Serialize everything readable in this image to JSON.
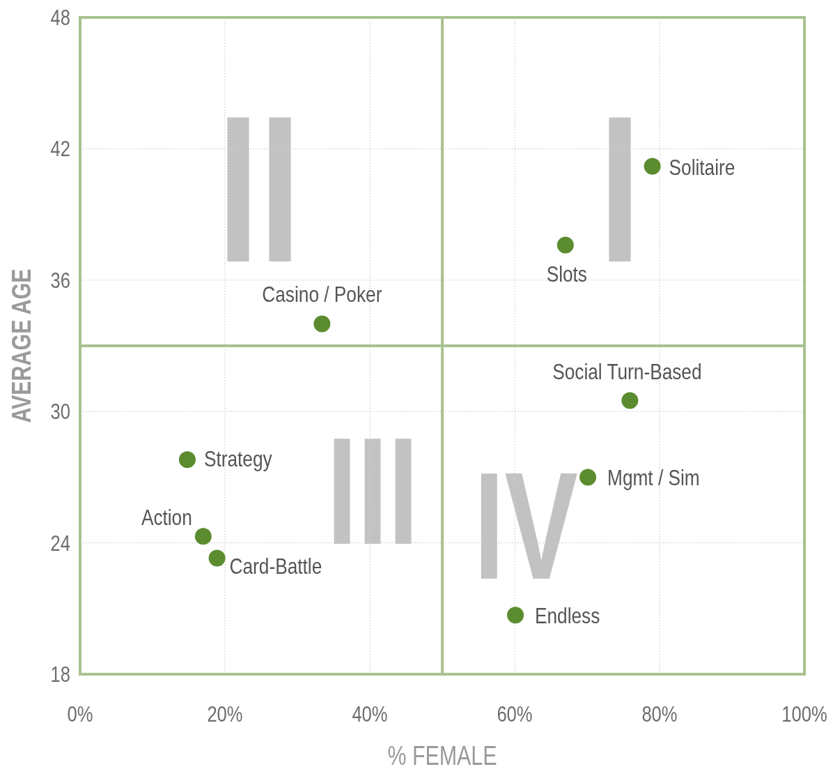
{
  "chart_data": {
    "type": "scatter",
    "xlabel": "% FEMALE",
    "ylabel": "AVERAGE AGE",
    "xlim": [
      0,
      100
    ],
    "ylim": [
      18,
      48
    ],
    "xticks": [
      {
        "value": 0,
        "label": "0%"
      },
      {
        "value": 20,
        "label": "20%"
      },
      {
        "value": 40,
        "label": "40%"
      },
      {
        "value": 60,
        "label": "60%"
      },
      {
        "value": 80,
        "label": "80%"
      },
      {
        "value": 100,
        "label": "100%"
      }
    ],
    "yticks": [
      18,
      24,
      30,
      36,
      42,
      48
    ],
    "grid": true,
    "marker": "circle",
    "series": [
      {
        "color": "#5b8c2f",
        "x": [
          79,
          67,
          33.4,
          75.9,
          70.1,
          60.1,
          14.8,
          17,
          18.9
        ],
        "values": [
          41.2,
          37.6,
          34,
          30.5,
          27,
          20.7,
          27.8,
          24.3,
          23.3
        ]
      }
    ],
    "ref_lines": [
      {
        "axis": "x",
        "value": 50,
        "color": "#a9c291"
      },
      {
        "axis": "y",
        "value": 33,
        "color": "#a9c291"
      }
    ],
    "annotations": [
      {
        "text": "Solitaire",
        "x": 79,
        "y": 41.2
      },
      {
        "text": "Slots",
        "x": 67,
        "y": 37.6
      },
      {
        "text": "Casino / Poker",
        "x": 33.4,
        "y": 34
      },
      {
        "text": "Social Turn-Based",
        "x": 75.9,
        "y": 30.5
      },
      {
        "text": "Mgmt / Sim",
        "x": 70.1,
        "y": 27
      },
      {
        "text": "Endless",
        "x": 60.1,
        "y": 20.7
      },
      {
        "text": "Strategy",
        "x": 14.8,
        "y": 27.8
      },
      {
        "text": "Action",
        "x": 17,
        "y": 24.3
      },
      {
        "text": "Card-Battle",
        "x": 18.9,
        "y": 23.3
      },
      "I",
      "II",
      "III",
      "IV"
    ]
  }
}
